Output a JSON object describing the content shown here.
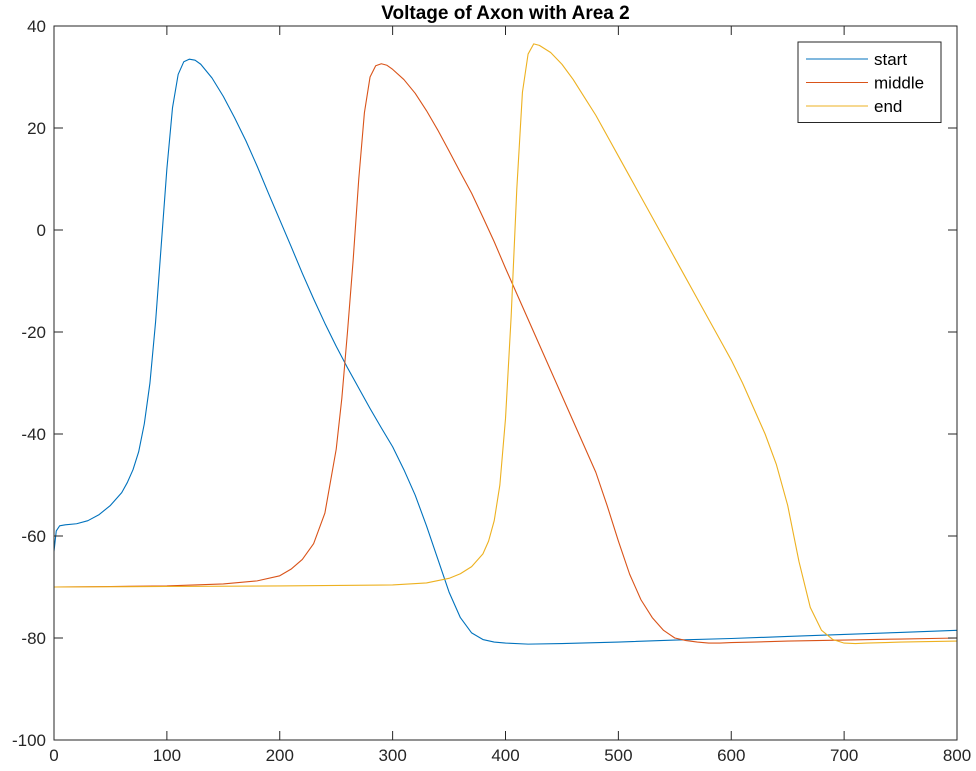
{
  "chart_data": {
    "type": "line",
    "title": "Voltage of Axon with Area 2",
    "xlabel": "",
    "ylabel": "",
    "xlim": [
      0,
      800
    ],
    "ylim": [
      -100,
      40
    ],
    "xticks": [
      0,
      100,
      200,
      300,
      400,
      500,
      600,
      700,
      800
    ],
    "yticks": [
      -100,
      -80,
      -60,
      -40,
      -20,
      0,
      20,
      40
    ],
    "grid": false,
    "legend_position": "top-right",
    "series": [
      {
        "name": "start",
        "color": "#0072BD",
        "x": [
          0,
          2,
          5,
          10,
          20,
          30,
          40,
          50,
          60,
          65,
          70,
          75,
          80,
          85,
          90,
          95,
          100,
          105,
          110,
          115,
          120,
          125,
          130,
          140,
          150,
          160,
          170,
          180,
          190,
          200,
          210,
          220,
          230,
          240,
          250,
          260,
          270,
          280,
          290,
          300,
          310,
          320,
          330,
          340,
          350,
          360,
          370,
          380,
          390,
          400,
          420,
          450,
          500,
          550,
          600,
          650,
          700,
          750,
          800
        ],
        "values": [
          -63,
          -59,
          -58,
          -57.8,
          -57.6,
          -57,
          -55.8,
          -54,
          -51.5,
          -49.5,
          -47,
          -43.5,
          -38,
          -30,
          -18,
          -3,
          12,
          24,
          30.5,
          33,
          33.5,
          33.3,
          32.5,
          29.8,
          26.2,
          22,
          17.5,
          12.5,
          7.2,
          2,
          -3.2,
          -8.5,
          -13.5,
          -18.3,
          -22.8,
          -27,
          -31,
          -35,
          -38.8,
          -42.5,
          -47,
          -52,
          -58,
          -64.5,
          -71,
          -76,
          -79,
          -80.3,
          -80.8,
          -81,
          -81.2,
          -81.1,
          -80.8,
          -80.4,
          -80.1,
          -79.7,
          -79.3,
          -78.9,
          -78.5
        ]
      },
      {
        "name": "middle",
        "color": "#D95319",
        "x": [
          0,
          50,
          100,
          150,
          180,
          200,
          210,
          220,
          230,
          240,
          250,
          255,
          260,
          265,
          270,
          275,
          280,
          285,
          290,
          295,
          300,
          310,
          320,
          330,
          340,
          350,
          360,
          370,
          380,
          390,
          400,
          410,
          420,
          430,
          440,
          450,
          460,
          470,
          480,
          490,
          500,
          510,
          520,
          530,
          540,
          550,
          560,
          570,
          580,
          590,
          600,
          620,
          650,
          700,
          750,
          800
        ],
        "values": [
          -70,
          -69.9,
          -69.8,
          -69.4,
          -68.8,
          -67.8,
          -66.5,
          -64.6,
          -61.5,
          -55.5,
          -43,
          -33,
          -20,
          -6,
          10,
          23,
          30,
          32.2,
          32.6,
          32.3,
          31.5,
          29.5,
          26.8,
          23.4,
          19.6,
          15.5,
          11.3,
          7.2,
          2.5,
          -2.3,
          -7.5,
          -12.5,
          -17.5,
          -22.5,
          -27.5,
          -32.5,
          -37.5,
          -42.5,
          -47.5,
          -54,
          -61,
          -67.5,
          -72.5,
          -76,
          -78.5,
          -80,
          -80.5,
          -80.8,
          -81,
          -81,
          -80.9,
          -80.8,
          -80.6,
          -80.4,
          -80.2,
          -80
        ]
      },
      {
        "name": "end",
        "color": "#EDB120",
        "x": [
          0,
          100,
          200,
          300,
          330,
          350,
          360,
          370,
          380,
          385,
          390,
          395,
          400,
          405,
          410,
          415,
          420,
          425,
          430,
          440,
          450,
          460,
          470,
          480,
          490,
          500,
          510,
          520,
          530,
          540,
          550,
          560,
          570,
          580,
          590,
          600,
          610,
          620,
          630,
          640,
          650,
          660,
          670,
          680,
          690,
          700,
          710,
          720,
          750,
          800
        ],
        "values": [
          -70,
          -69.9,
          -69.8,
          -69.6,
          -69.2,
          -68.3,
          -67.4,
          -66,
          -63.5,
          -61,
          -57,
          -50,
          -37,
          -17,
          8,
          27,
          34.5,
          36.5,
          36.2,
          34.8,
          32.5,
          29.5,
          26,
          22.5,
          18.5,
          14.5,
          10.5,
          6.5,
          2.5,
          -1.5,
          -5.5,
          -9.5,
          -13.5,
          -17.5,
          -21.5,
          -25.5,
          -30,
          -35,
          -40,
          -46,
          -54,
          -65,
          -74,
          -78.5,
          -80.3,
          -81,
          -81.1,
          -81,
          -80.8,
          -80.6
        ]
      }
    ]
  }
}
